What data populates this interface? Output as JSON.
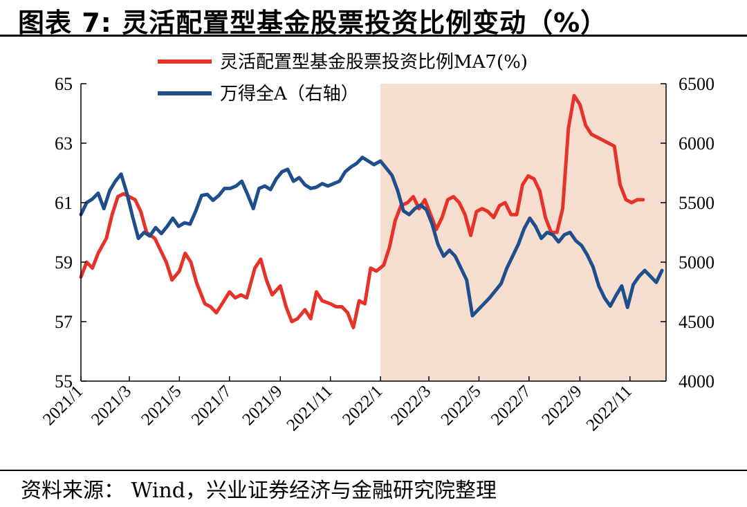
{
  "title": "图表 7: 灵活配置型基金股票投资比例变动（%）",
  "source": "资料来源： Wind，兴业证券经济与金融研究院整理",
  "chart_data": {
    "type": "line",
    "x_range": [
      "2021-01-01",
      "2022-12-15"
    ],
    "x_tick_labels": [
      "2021/1",
      "2021/3",
      "2021/5",
      "2021/7",
      "2021/9",
      "2021/11",
      "2022/1",
      "2022/3",
      "2022/5",
      "2022/7",
      "2022/9",
      "2022/11"
    ],
    "y_left": {
      "ylim": [
        55,
        65
      ],
      "ticks": [
        "55",
        "57",
        "59",
        "61",
        "63",
        "65"
      ]
    },
    "y_right": {
      "ylim": [
        4000,
        6500
      ],
      "ticks": [
        "4000",
        "4500",
        "5000",
        "5500",
        "6000",
        "6500"
      ]
    },
    "shaded_region": {
      "start": "2022-01-01",
      "end": "2022-12-15",
      "color": "#f5ddd0"
    },
    "grid": false,
    "legend_position": "top-center",
    "series": [
      {
        "name": "灵活配置型基金股票投资比例MA7(%)",
        "axis": "left",
        "color": "#e63329",
        "points": [
          [
            "2021-01-01",
            58.5
          ],
          [
            "2021-01-08",
            59.0
          ],
          [
            "2021-01-15",
            58.8
          ],
          [
            "2021-01-22",
            59.3
          ],
          [
            "2021-02-01",
            59.8
          ],
          [
            "2021-02-08",
            60.6
          ],
          [
            "2021-02-15",
            61.2
          ],
          [
            "2021-02-22",
            61.3
          ],
          [
            "2021-03-01",
            61.2
          ],
          [
            "2021-03-08",
            61.1
          ],
          [
            "2021-03-15",
            60.7
          ],
          [
            "2021-03-22",
            60.0
          ],
          [
            "2021-04-01",
            59.8
          ],
          [
            "2021-04-08",
            59.4
          ],
          [
            "2021-04-15",
            59.0
          ],
          [
            "2021-04-22",
            58.4
          ],
          [
            "2021-05-01",
            58.7
          ],
          [
            "2021-05-08",
            59.3
          ],
          [
            "2021-05-15",
            59.0
          ],
          [
            "2021-05-22",
            58.3
          ],
          [
            "2021-06-01",
            57.6
          ],
          [
            "2021-06-08",
            57.5
          ],
          [
            "2021-06-15",
            57.3
          ],
          [
            "2021-06-22",
            57.6
          ],
          [
            "2021-07-01",
            58.0
          ],
          [
            "2021-07-08",
            57.8
          ],
          [
            "2021-07-15",
            57.9
          ],
          [
            "2021-07-22",
            57.8
          ],
          [
            "2021-08-01",
            58.8
          ],
          [
            "2021-08-08",
            59.1
          ],
          [
            "2021-08-15",
            58.4
          ],
          [
            "2021-08-22",
            57.9
          ],
          [
            "2021-09-01",
            58.2
          ],
          [
            "2021-09-08",
            57.5
          ],
          [
            "2021-09-15",
            57.0
          ],
          [
            "2021-09-22",
            57.1
          ],
          [
            "2021-10-01",
            57.4
          ],
          [
            "2021-10-08",
            57.1
          ],
          [
            "2021-10-15",
            58.0
          ],
          [
            "2021-10-22",
            57.7
          ],
          [
            "2021-11-01",
            57.6
          ],
          [
            "2021-11-08",
            57.5
          ],
          [
            "2021-11-15",
            57.5
          ],
          [
            "2021-11-22",
            57.3
          ],
          [
            "2021-11-29",
            56.8
          ],
          [
            "2021-12-06",
            57.7
          ],
          [
            "2021-12-13",
            57.6
          ],
          [
            "2021-12-20",
            58.8
          ],
          [
            "2021-12-27",
            58.7
          ],
          [
            "2022-01-05",
            58.9
          ],
          [
            "2022-01-12",
            59.5
          ],
          [
            "2022-01-19",
            60.4
          ],
          [
            "2022-01-26",
            60.9
          ],
          [
            "2022-02-03",
            61.0
          ],
          [
            "2022-02-10",
            61.2
          ],
          [
            "2022-02-17",
            60.8
          ],
          [
            "2022-02-24",
            61.1
          ],
          [
            "2022-03-03",
            60.6
          ],
          [
            "2022-03-10",
            60.1
          ],
          [
            "2022-03-17",
            60.5
          ],
          [
            "2022-03-24",
            61.1
          ],
          [
            "2022-03-31",
            61.2
          ],
          [
            "2022-04-07",
            61.0
          ],
          [
            "2022-04-14",
            60.6
          ],
          [
            "2022-04-21",
            59.9
          ],
          [
            "2022-04-28",
            60.7
          ],
          [
            "2022-05-05",
            60.8
          ],
          [
            "2022-05-12",
            60.7
          ],
          [
            "2022-05-19",
            60.5
          ],
          [
            "2022-05-26",
            60.9
          ],
          [
            "2022-06-02",
            61.0
          ],
          [
            "2022-06-09",
            60.6
          ],
          [
            "2022-06-16",
            60.6
          ],
          [
            "2022-06-23",
            61.6
          ],
          [
            "2022-06-30",
            61.9
          ],
          [
            "2022-07-07",
            61.8
          ],
          [
            "2022-07-14",
            61.4
          ],
          [
            "2022-07-21",
            60.5
          ],
          [
            "2022-07-28",
            60.0
          ],
          [
            "2022-08-04",
            60.0
          ],
          [
            "2022-08-11",
            60.8
          ],
          [
            "2022-08-18",
            63.5
          ],
          [
            "2022-08-25",
            64.6
          ],
          [
            "2022-09-01",
            64.3
          ],
          [
            "2022-09-08",
            63.6
          ],
          [
            "2022-09-15",
            63.3
          ],
          [
            "2022-09-22",
            63.2
          ],
          [
            "2022-09-29",
            63.1
          ],
          [
            "2022-10-06",
            63.0
          ],
          [
            "2022-10-13",
            62.9
          ],
          [
            "2022-10-20",
            61.6
          ],
          [
            "2022-10-27",
            61.1
          ],
          [
            "2022-11-03",
            61.0
          ],
          [
            "2022-11-10",
            61.1
          ],
          [
            "2022-11-17",
            61.1
          ]
        ]
      },
      {
        "name": "万得全A（右轴）",
        "axis": "right",
        "color": "#1f4e8c",
        "points": [
          [
            "2021-01-01",
            5400
          ],
          [
            "2021-01-08",
            5500
          ],
          [
            "2021-01-15",
            5530
          ],
          [
            "2021-01-22",
            5580
          ],
          [
            "2021-01-29",
            5450
          ],
          [
            "2021-02-05",
            5600
          ],
          [
            "2021-02-12",
            5680
          ],
          [
            "2021-02-19",
            5740
          ],
          [
            "2021-02-26",
            5580
          ],
          [
            "2021-03-05",
            5380
          ],
          [
            "2021-03-12",
            5200
          ],
          [
            "2021-03-19",
            5250
          ],
          [
            "2021-03-26",
            5220
          ],
          [
            "2021-04-02",
            5290
          ],
          [
            "2021-04-09",
            5240
          ],
          [
            "2021-04-16",
            5300
          ],
          [
            "2021-04-23",
            5370
          ],
          [
            "2021-04-30",
            5300
          ],
          [
            "2021-05-07",
            5330
          ],
          [
            "2021-05-14",
            5320
          ],
          [
            "2021-05-21",
            5430
          ],
          [
            "2021-05-28",
            5560
          ],
          [
            "2021-06-04",
            5570
          ],
          [
            "2021-06-11",
            5520
          ],
          [
            "2021-06-18",
            5560
          ],
          [
            "2021-06-25",
            5620
          ],
          [
            "2021-07-02",
            5620
          ],
          [
            "2021-07-09",
            5640
          ],
          [
            "2021-07-16",
            5680
          ],
          [
            "2021-07-23",
            5570
          ],
          [
            "2021-07-30",
            5450
          ],
          [
            "2021-08-06",
            5620
          ],
          [
            "2021-08-13",
            5640
          ],
          [
            "2021-08-20",
            5610
          ],
          [
            "2021-08-27",
            5700
          ],
          [
            "2021-09-03",
            5760
          ],
          [
            "2021-09-10",
            5780
          ],
          [
            "2021-09-17",
            5680
          ],
          [
            "2021-09-24",
            5710
          ],
          [
            "2021-10-01",
            5650
          ],
          [
            "2021-10-08",
            5620
          ],
          [
            "2021-10-15",
            5630
          ],
          [
            "2021-10-22",
            5660
          ],
          [
            "2021-10-29",
            5640
          ],
          [
            "2021-11-05",
            5660
          ],
          [
            "2021-11-12",
            5680
          ],
          [
            "2021-11-19",
            5760
          ],
          [
            "2021-11-26",
            5800
          ],
          [
            "2021-12-03",
            5830
          ],
          [
            "2021-12-10",
            5880
          ],
          [
            "2021-12-17",
            5850
          ],
          [
            "2021-12-24",
            5820
          ],
          [
            "2022-01-01",
            5850
          ],
          [
            "2022-01-08",
            5790
          ],
          [
            "2022-01-15",
            5730
          ],
          [
            "2022-01-22",
            5600
          ],
          [
            "2022-01-29",
            5430
          ],
          [
            "2022-02-05",
            5400
          ],
          [
            "2022-02-12",
            5450
          ],
          [
            "2022-02-19",
            5480
          ],
          [
            "2022-02-26",
            5440
          ],
          [
            "2022-03-05",
            5320
          ],
          [
            "2022-03-12",
            5150
          ],
          [
            "2022-03-19",
            5050
          ],
          [
            "2022-03-26",
            5100
          ],
          [
            "2022-04-02",
            5050
          ],
          [
            "2022-04-09",
            4950
          ],
          [
            "2022-04-16",
            4850
          ],
          [
            "2022-04-23",
            4550
          ],
          [
            "2022-04-30",
            4600
          ],
          [
            "2022-05-07",
            4650
          ],
          [
            "2022-05-14",
            4700
          ],
          [
            "2022-05-21",
            4760
          ],
          [
            "2022-05-28",
            4820
          ],
          [
            "2022-06-04",
            4950
          ],
          [
            "2022-06-11",
            5050
          ],
          [
            "2022-06-18",
            5150
          ],
          [
            "2022-06-25",
            5280
          ],
          [
            "2022-07-02",
            5370
          ],
          [
            "2022-07-09",
            5300
          ],
          [
            "2022-07-16",
            5200
          ],
          [
            "2022-07-23",
            5250
          ],
          [
            "2022-07-30",
            5230
          ],
          [
            "2022-08-06",
            5170
          ],
          [
            "2022-08-13",
            5230
          ],
          [
            "2022-08-20",
            5250
          ],
          [
            "2022-08-27",
            5180
          ],
          [
            "2022-09-03",
            5140
          ],
          [
            "2022-09-10",
            5060
          ],
          [
            "2022-09-17",
            4960
          ],
          [
            "2022-09-24",
            4800
          ],
          [
            "2022-10-01",
            4700
          ],
          [
            "2022-10-08",
            4630
          ],
          [
            "2022-10-15",
            4720
          ],
          [
            "2022-10-22",
            4800
          ],
          [
            "2022-10-29",
            4620
          ],
          [
            "2022-11-05",
            4810
          ],
          [
            "2022-11-12",
            4880
          ],
          [
            "2022-11-19",
            4930
          ],
          [
            "2022-11-26",
            4880
          ],
          [
            "2022-12-03",
            4830
          ],
          [
            "2022-12-10",
            4930
          ]
        ]
      }
    ]
  }
}
